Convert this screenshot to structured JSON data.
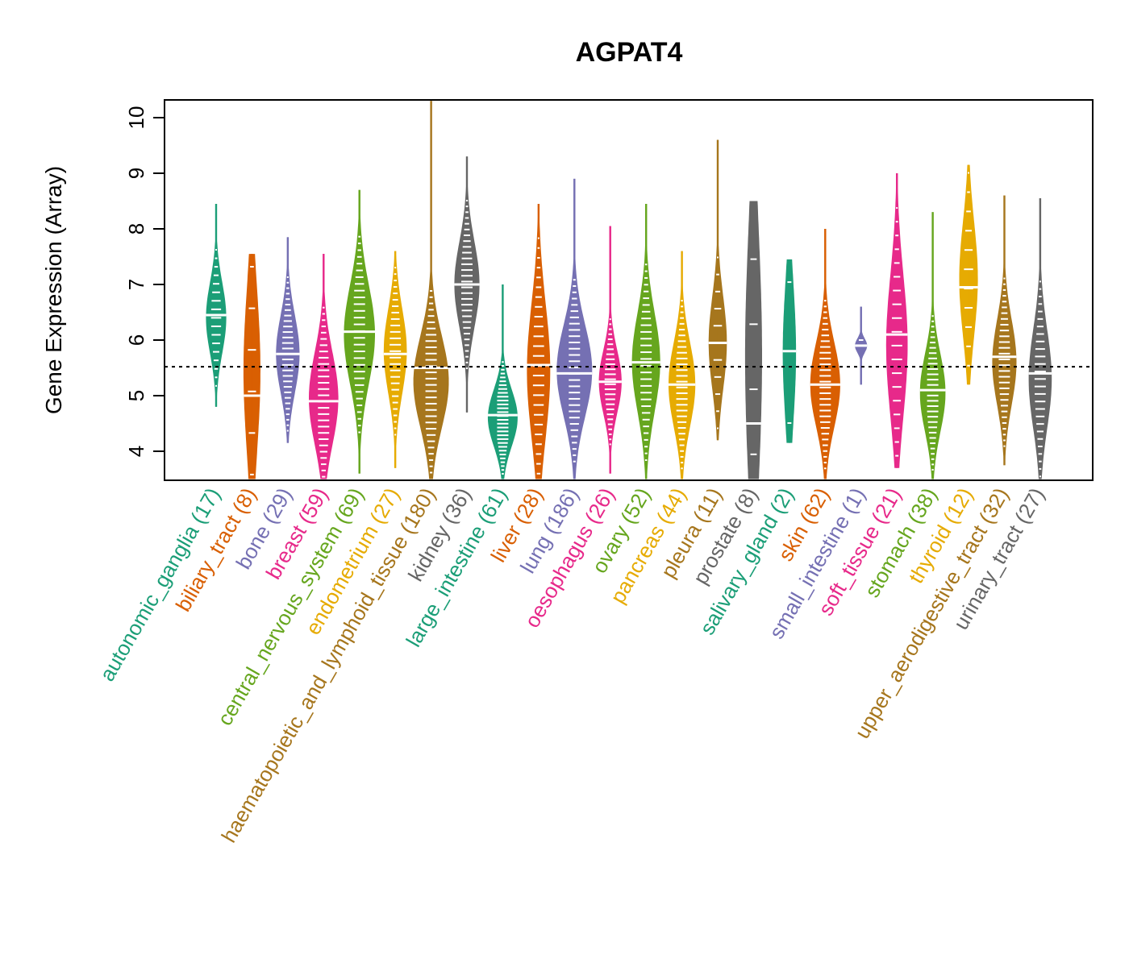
{
  "chart_data": {
    "type": "violin",
    "title": "AGPAT4",
    "xlabel": "",
    "ylabel": "Gene Expression (Array)",
    "ylim": [
      3.5,
      10.3
    ],
    "yticks": [
      4,
      5,
      6,
      7,
      8,
      9,
      10
    ],
    "reference_line": {
      "value": 5.52,
      "style": "dotted",
      "color": "#000000"
    },
    "grid": false,
    "legend": "none",
    "categories": [
      {
        "name": "autonomic_ganglia",
        "n": 17,
        "label": "autonomic_ganglia (17)",
        "color": "#1B9E77",
        "min": 4.8,
        "max": 8.45,
        "median": 6.45,
        "q1": 5.9,
        "q3": 6.9
      },
      {
        "name": "biliary_tract",
        "n": 8,
        "label": "biliary_tract (8)",
        "color": "#D95F02",
        "min": 3.5,
        "max": 7.55,
        "median": 5.0,
        "q1": 4.3,
        "q3": 6.6
      },
      {
        "name": "bone",
        "n": 29,
        "label": "bone (29)",
        "color": "#7570B3",
        "min": 4.15,
        "max": 7.85,
        "median": 5.75,
        "q1": 5.2,
        "q3": 6.3
      },
      {
        "name": "breast",
        "n": 59,
        "label": "breast (59)",
        "color": "#E7298A",
        "min": 3.5,
        "max": 7.55,
        "median": 4.9,
        "q1": 4.3,
        "q3": 5.6
      },
      {
        "name": "central_nervous_system",
        "n": 69,
        "label": "central_nervous_system (69)",
        "color": "#66A61E",
        "min": 3.6,
        "max": 8.7,
        "median": 6.15,
        "q1": 5.4,
        "q3": 6.8
      },
      {
        "name": "endometrium",
        "n": 27,
        "label": "endometrium (27)",
        "color": "#E6AB02",
        "min": 3.7,
        "max": 7.6,
        "median": 5.75,
        "q1": 5.2,
        "q3": 6.4
      },
      {
        "name": "haematopoietic_and_lymphoid_tissue",
        "n": 180,
        "label": "haematopoietic_and_lymphoid_tissue (180)",
        "color": "#A6761D",
        "min": 3.5,
        "max": 10.3,
        "median": 5.5,
        "q1": 4.6,
        "q3": 5.9
      },
      {
        "name": "kidney",
        "n": 36,
        "label": "kidney (36)",
        "color": "#666666",
        "min": 4.7,
        "max": 9.3,
        "median": 7.0,
        "q1": 6.4,
        "q3": 7.6
      },
      {
        "name": "large_intestine",
        "n": 61,
        "label": "large_intestine (61)",
        "color": "#1B9E77",
        "min": 3.5,
        "max": 7.0,
        "median": 4.65,
        "q1": 4.2,
        "q3": 5.0
      },
      {
        "name": "liver",
        "n": 28,
        "label": "liver (28)",
        "color": "#D95F02",
        "min": 3.5,
        "max": 8.45,
        "median": 5.55,
        "q1": 4.5,
        "q3": 6.4
      },
      {
        "name": "lung",
        "n": 186,
        "label": "lung (186)",
        "color": "#7570B3",
        "min": 3.5,
        "max": 8.9,
        "median": 5.4,
        "q1": 4.8,
        "q3": 6.1
      },
      {
        "name": "oesophagus",
        "n": 26,
        "label": "oesophagus (26)",
        "color": "#E7298A",
        "min": 3.6,
        "max": 8.05,
        "median": 5.25,
        "q1": 4.8,
        "q3": 5.7
      },
      {
        "name": "ovary",
        "n": 52,
        "label": "ovary (52)",
        "color": "#66A61E",
        "min": 3.5,
        "max": 8.45,
        "median": 5.6,
        "q1": 4.9,
        "q3": 6.3
      },
      {
        "name": "pancreas",
        "n": 44,
        "label": "pancreas (44)",
        "color": "#E6AB02",
        "min": 3.5,
        "max": 7.6,
        "median": 5.2,
        "q1": 4.6,
        "q3": 5.8
      },
      {
        "name": "pleura",
        "n": 11,
        "label": "pleura (11)",
        "color": "#A6761D",
        "min": 4.2,
        "max": 9.6,
        "median": 5.95,
        "q1": 5.3,
        "q3": 6.6
      },
      {
        "name": "prostate",
        "n": 8,
        "label": "prostate (8)",
        "color": "#666666",
        "min": 3.5,
        "max": 8.5,
        "median": 4.5,
        "q1": 3.9,
        "q3": 7.5
      },
      {
        "name": "salivary_gland",
        "n": 2,
        "label": "salivary_gland (2)",
        "color": "#1B9E77",
        "min": 4.15,
        "max": 7.45,
        "median": 5.8,
        "q1": 4.8,
        "q3": 6.75
      },
      {
        "name": "skin",
        "n": 62,
        "label": "skin (62)",
        "color": "#D95F02",
        "min": 3.5,
        "max": 8.0,
        "median": 5.2,
        "q1": 4.6,
        "q3": 5.8
      },
      {
        "name": "small_intestine",
        "n": 1,
        "label": "small_intestine (1)",
        "color": "#7570B3",
        "min": 5.2,
        "max": 6.6,
        "median": 5.9,
        "q1": 5.9,
        "q3": 5.9
      },
      {
        "name": "soft_tissue",
        "n": 21,
        "label": "soft_tissue (21)",
        "color": "#E7298A",
        "min": 3.7,
        "max": 9.0,
        "median": 6.1,
        "q1": 4.9,
        "q3": 6.9
      },
      {
        "name": "stomach",
        "n": 38,
        "label": "stomach (38)",
        "color": "#66A61E",
        "min": 3.5,
        "max": 8.3,
        "median": 5.1,
        "q1": 4.5,
        "q3": 5.6
      },
      {
        "name": "thyroid",
        "n": 12,
        "label": "thyroid (12)",
        "color": "#E6AB02",
        "min": 5.2,
        "max": 9.15,
        "median": 6.95,
        "q1": 6.3,
        "q3": 7.9
      },
      {
        "name": "upper_aerodigestive_tract",
        "n": 32,
        "label": "upper_aerodigestive_tract (32)",
        "color": "#A6761D",
        "min": 3.75,
        "max": 8.6,
        "median": 5.7,
        "q1": 5.0,
        "q3": 6.2
      },
      {
        "name": "urinary_tract",
        "n": 27,
        "label": "urinary_tract (27)",
        "color": "#666666",
        "min": 3.5,
        "max": 8.55,
        "median": 5.4,
        "q1": 4.6,
        "q3": 6.0
      }
    ]
  }
}
